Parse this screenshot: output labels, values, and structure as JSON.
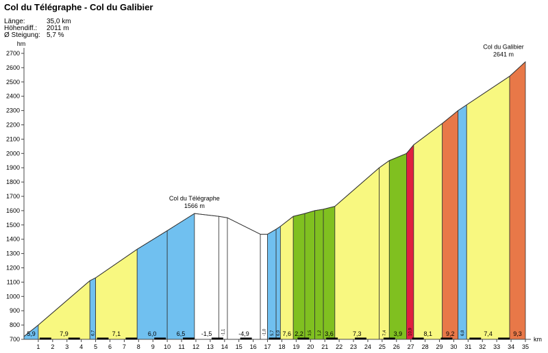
{
  "title": "Col du Télégraphe - Col du Galibier",
  "stats": [
    {
      "label": "Länge:",
      "value": "35,0 km"
    },
    {
      "label": "Höhendiff.:",
      "value": "2011 m"
    },
    {
      "label": "Ø Steigung:",
      "value": "5,7 %"
    }
  ],
  "colors": {
    "light_blue": "#70c0f0",
    "yellow": "#f8f880",
    "white": "#ffffff",
    "green": "#80c020",
    "red": "#e02040",
    "orange": "#e87848",
    "outline": "#333333"
  },
  "chart_data": {
    "type": "area",
    "title": "Col du Télégraphe - Col du Galibier",
    "xlabel": "km",
    "ylabel": "hm",
    "xlim": [
      0,
      35
    ],
    "ylim": [
      700,
      2700
    ],
    "x_ticks": [
      1,
      2,
      3,
      4,
      5,
      6,
      7,
      8,
      9,
      10,
      11,
      12,
      13,
      14,
      15,
      16,
      17,
      18,
      19,
      20,
      21,
      22,
      23,
      24,
      25,
      26,
      27,
      28,
      29,
      30,
      31,
      32,
      33,
      34,
      35
    ],
    "y_ticks": [
      700,
      800,
      900,
      1000,
      1100,
      1200,
      1300,
      1400,
      1500,
      1600,
      1700,
      1800,
      1900,
      2000,
      2100,
      2200,
      2300,
      2400,
      2500,
      2600,
      2700
    ],
    "segments": [
      {
        "x0": 0,
        "x1": 1,
        "y0": 720,
        "y1": 800,
        "gradient": "5,9",
        "color": "#70c0f0"
      },
      {
        "x0": 1,
        "x1": 4.6,
        "y0": 800,
        "y1": 1110,
        "gradient": "7,9",
        "color": "#f8f880"
      },
      {
        "x0": 4.6,
        "x1": 5,
        "y0": 1110,
        "y1": 1130,
        "gradient": "6,7",
        "color": "#70c0f0"
      },
      {
        "x0": 5,
        "x1": 7.9,
        "y0": 1130,
        "y1": 1330,
        "gradient": "7,1",
        "color": "#f8f880"
      },
      {
        "x0": 7.9,
        "x1": 10,
        "y0": 1330,
        "y1": 1460,
        "gradient": "6,0",
        "color": "#70c0f0"
      },
      {
        "x0": 10,
        "x1": 11.9,
        "y0": 1460,
        "y1": 1580,
        "gradient": "6,5",
        "color": "#70c0f0"
      },
      {
        "x0": 11.9,
        "x1": 13.6,
        "y0": 1580,
        "y1": 1560,
        "gradient": "-1,5",
        "color": "#ffffff"
      },
      {
        "x0": 13.6,
        "x1": 14.2,
        "y0": 1560,
        "y1": 1550,
        "gradient": "-1,1",
        "color": "#ffffff"
      },
      {
        "x0": 14.2,
        "x1": 16.5,
        "y0": 1550,
        "y1": 1435,
        "gradient": "-4,9",
        "color": "#ffffff"
      },
      {
        "x0": 16.5,
        "x1": 17,
        "y0": 1435,
        "y1": 1435,
        "gradient": "-1,0",
        "color": "#ffffff"
      },
      {
        "x0": 17,
        "x1": 17.6,
        "y0": 1435,
        "y1": 1470,
        "gradient": "5,7",
        "color": "#70c0f0"
      },
      {
        "x0": 17.6,
        "x1": 17.9,
        "y0": 1470,
        "y1": 1490,
        "gradient": "6,9",
        "color": "#70c0f0"
      },
      {
        "x0": 17.9,
        "x1": 18.8,
        "y0": 1490,
        "y1": 1560,
        "gradient": "7,6",
        "color": "#f8f880"
      },
      {
        "x0": 18.8,
        "x1": 19.6,
        "y0": 1560,
        "y1": 1580,
        "gradient": "2,2",
        "color": "#80c020"
      },
      {
        "x0": 19.6,
        "x1": 20.3,
        "y0": 1580,
        "y1": 1600,
        "gradient": "3,5",
        "color": "#80c020"
      },
      {
        "x0": 20.3,
        "x1": 20.9,
        "y0": 1600,
        "y1": 1610,
        "gradient": "1,2",
        "color": "#80c020"
      },
      {
        "x0": 20.9,
        "x1": 21.7,
        "y0": 1610,
        "y1": 1630,
        "gradient": "3,6",
        "color": "#80c020"
      },
      {
        "x0": 21.7,
        "x1": 24.8,
        "y0": 1630,
        "y1": 1900,
        "gradient": "7,3",
        "color": "#f8f880"
      },
      {
        "x0": 24.8,
        "x1": 25.5,
        "y0": 1900,
        "y1": 1950,
        "gradient": "7,4",
        "color": "#f8f880"
      },
      {
        "x0": 25.5,
        "x1": 26.7,
        "y0": 1950,
        "y1": 2000,
        "gradient": "3,9",
        "color": "#80c020"
      },
      {
        "x0": 26.7,
        "x1": 27.2,
        "y0": 2000,
        "y1": 2060,
        "gradient": "10,9",
        "color": "#e02040"
      },
      {
        "x0": 27.2,
        "x1": 29.2,
        "y0": 2060,
        "y1": 2210,
        "gradient": "8,1",
        "color": "#f8f880"
      },
      {
        "x0": 29.2,
        "x1": 30.3,
        "y0": 2210,
        "y1": 2300,
        "gradient": "9,2",
        "color": "#e87848"
      },
      {
        "x0": 30.3,
        "x1": 30.9,
        "y0": 2300,
        "y1": 2340,
        "gradient": "6,8",
        "color": "#70c0f0"
      },
      {
        "x0": 30.9,
        "x1": 33.9,
        "y0": 2340,
        "y1": 2540,
        "gradient": "7,4",
        "color": "#f8f880"
      },
      {
        "x0": 33.9,
        "x1": 35,
        "y0": 2540,
        "y1": 2641,
        "gradient": "9,3",
        "color": "#e87848"
      }
    ],
    "annotations": [
      {
        "name": "Col du Télégraphe",
        "elevation": "1566 m",
        "x": 11.9,
        "y": 1580
      },
      {
        "name": "Col du Galibier",
        "elevation": "2641 m",
        "x": 35,
        "y": 2641
      }
    ],
    "grid": false,
    "legend": "none"
  }
}
